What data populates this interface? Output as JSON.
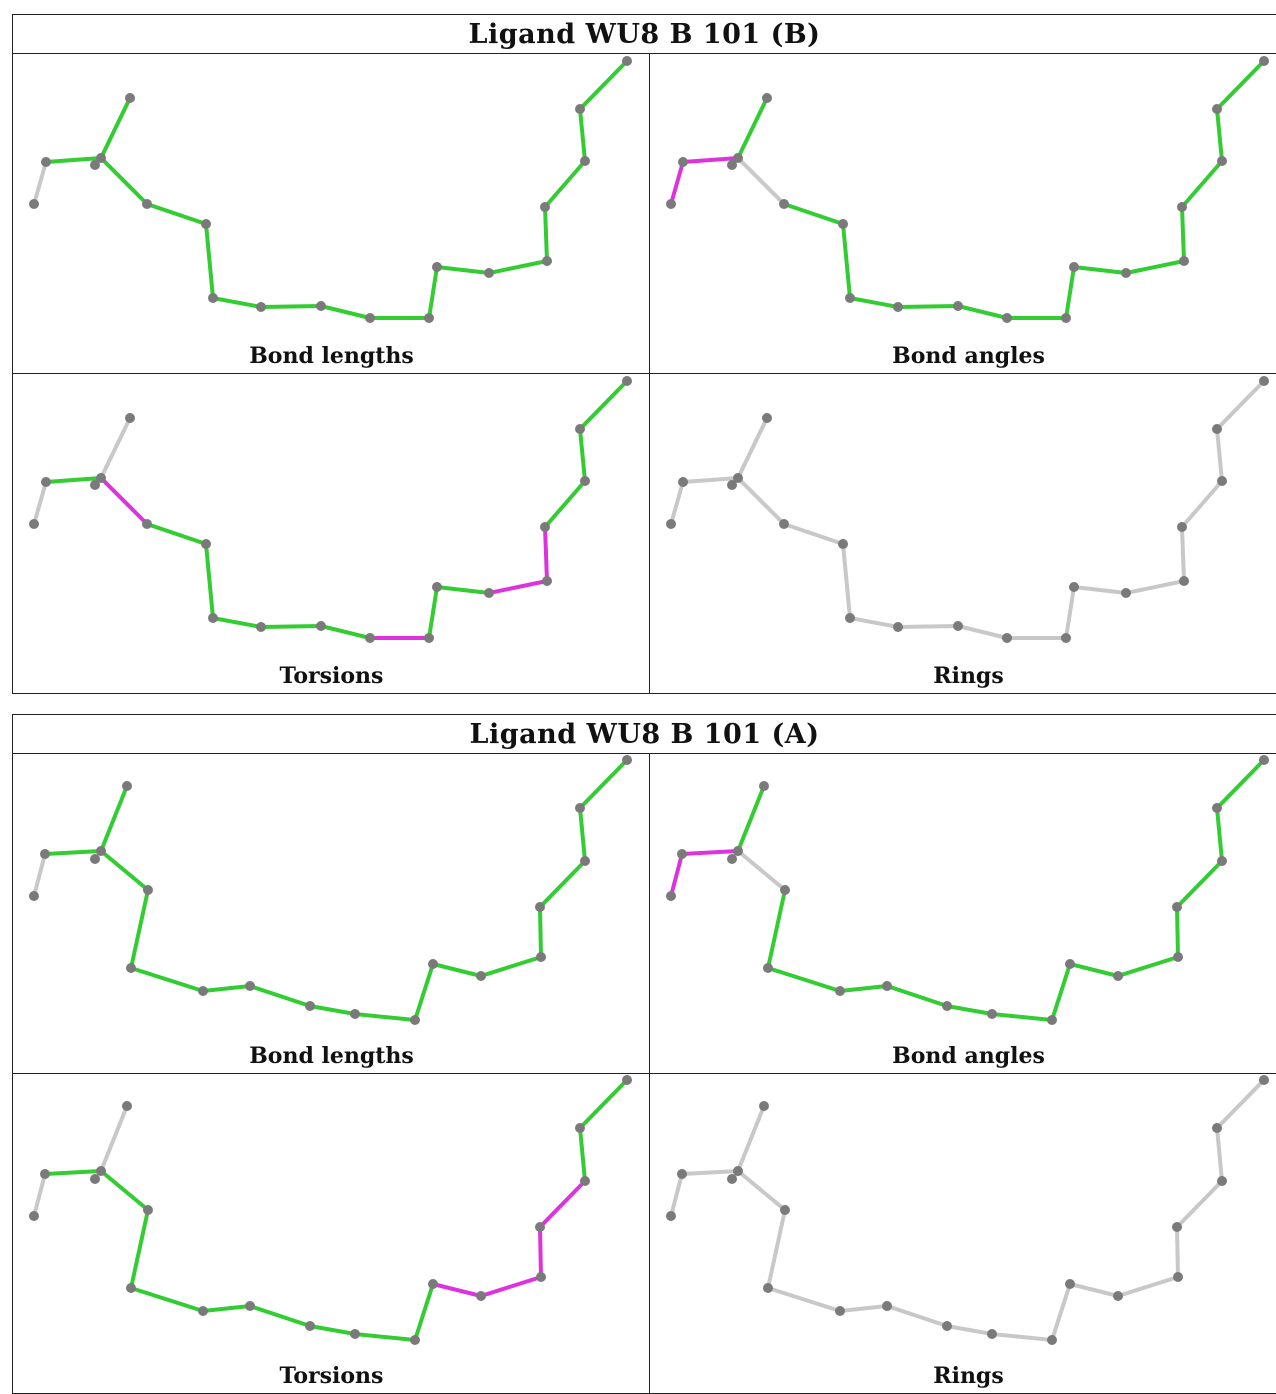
{
  "blocks": [
    {
      "title": "Ligand WU8 B 101 (B)",
      "panels": [
        {
          "label": "Bond lengths",
          "structure": "b",
          "colors": [
            "gray",
            "grn",
            "gray",
            "grn",
            "grn",
            "grn",
            "grn",
            "grn",
            "grn",
            "grn",
            "grn",
            "grn",
            "grn",
            "grn",
            "grn",
            "grn",
            "grn",
            "grn",
            "grn",
            "grn"
          ]
        },
        {
          "label": "Bond angles",
          "structure": "b",
          "colors": [
            "mag",
            "mag",
            "gray",
            "grn",
            "gray",
            "grn",
            "grn",
            "grn",
            "grn",
            "grn",
            "grn",
            "grn",
            "grn",
            "grn",
            "grn",
            "grn",
            "grn",
            "grn",
            "grn",
            "grn"
          ]
        },
        {
          "label": "Torsions",
          "structure": "b",
          "colors": [
            "gray",
            "grn",
            "gray",
            "gray",
            "mag",
            "grn",
            "grn",
            "grn",
            "grn",
            "grn",
            "mag",
            "grn",
            "grn",
            "mag",
            "mag",
            "grn",
            "grn",
            "grn",
            "grn",
            "gray"
          ]
        },
        {
          "label": "Rings",
          "structure": "b",
          "colors": [
            "gray",
            "gray",
            "gray",
            "gray",
            "gray",
            "gray",
            "gray",
            "gray",
            "gray",
            "gray",
            "gray",
            "gray",
            "gray",
            "gray",
            "gray",
            "gray",
            "gray",
            "gray",
            "gray",
            "gray"
          ]
        }
      ]
    },
    {
      "title": "Ligand WU8 B 101 (A)",
      "panels": [
        {
          "label": "Bond lengths",
          "structure": "a",
          "colors": [
            "gray",
            "grn",
            "gray",
            "grn",
            "grn",
            "grn",
            "grn",
            "grn",
            "grn",
            "grn",
            "grn",
            "grn",
            "grn",
            "grn",
            "grn",
            "grn",
            "grn",
            "grn",
            "grn",
            "grn"
          ]
        },
        {
          "label": "Bond angles",
          "structure": "a",
          "colors": [
            "mag",
            "mag",
            "gray",
            "grn",
            "gray",
            "grn",
            "grn",
            "grn",
            "grn",
            "grn",
            "grn",
            "grn",
            "grn",
            "grn",
            "grn",
            "grn",
            "grn",
            "grn",
            "grn",
            "grn"
          ]
        },
        {
          "label": "Torsions",
          "structure": "a",
          "colors": [
            "gray",
            "grn",
            "gray",
            "gray",
            "grn",
            "grn",
            "grn",
            "grn",
            "grn",
            "grn",
            "grn",
            "grn",
            "mag",
            "mag",
            "mag",
            "mag",
            "grn",
            "grn",
            "grn",
            "gray"
          ]
        },
        {
          "label": "Rings",
          "structure": "a",
          "colors": [
            "gray",
            "gray",
            "gray",
            "gray",
            "gray",
            "gray",
            "gray",
            "gray",
            "gray",
            "gray",
            "gray",
            "gray",
            "gray",
            "gray",
            "gray",
            "gray",
            "gray",
            "gray",
            "gray",
            "gray"
          ]
        }
      ]
    }
  ],
  "colors": {
    "green": "#33cc33",
    "magenta": "#dd33dd",
    "gray": "#c8c8c8",
    "atom": "#7a7a7a",
    "border": "#222222"
  }
}
